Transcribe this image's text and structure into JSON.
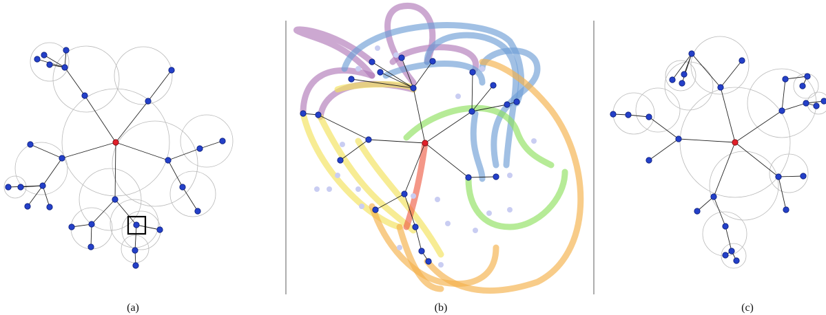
{
  "captions": {
    "a": "(a)",
    "b": "(b)",
    "c": "(c)"
  },
  "colors": {
    "node_fill": "#2440c8",
    "node_stroke": "#0a1c7a",
    "root_fill": "#e0202a",
    "edge": "#222222",
    "circle": "#b8b8b8",
    "divider": "#777777",
    "highlight": "#000000",
    "trail_purple": "#b07ab8",
    "trail_blue": "#6f9ed6",
    "trail_yellow": "#f2e25a",
    "trail_green": "#8fe060",
    "trail_orange": "#f5b04a",
    "trail_red": "#ee6048",
    "ghost": "#c9cdf2"
  }
}
